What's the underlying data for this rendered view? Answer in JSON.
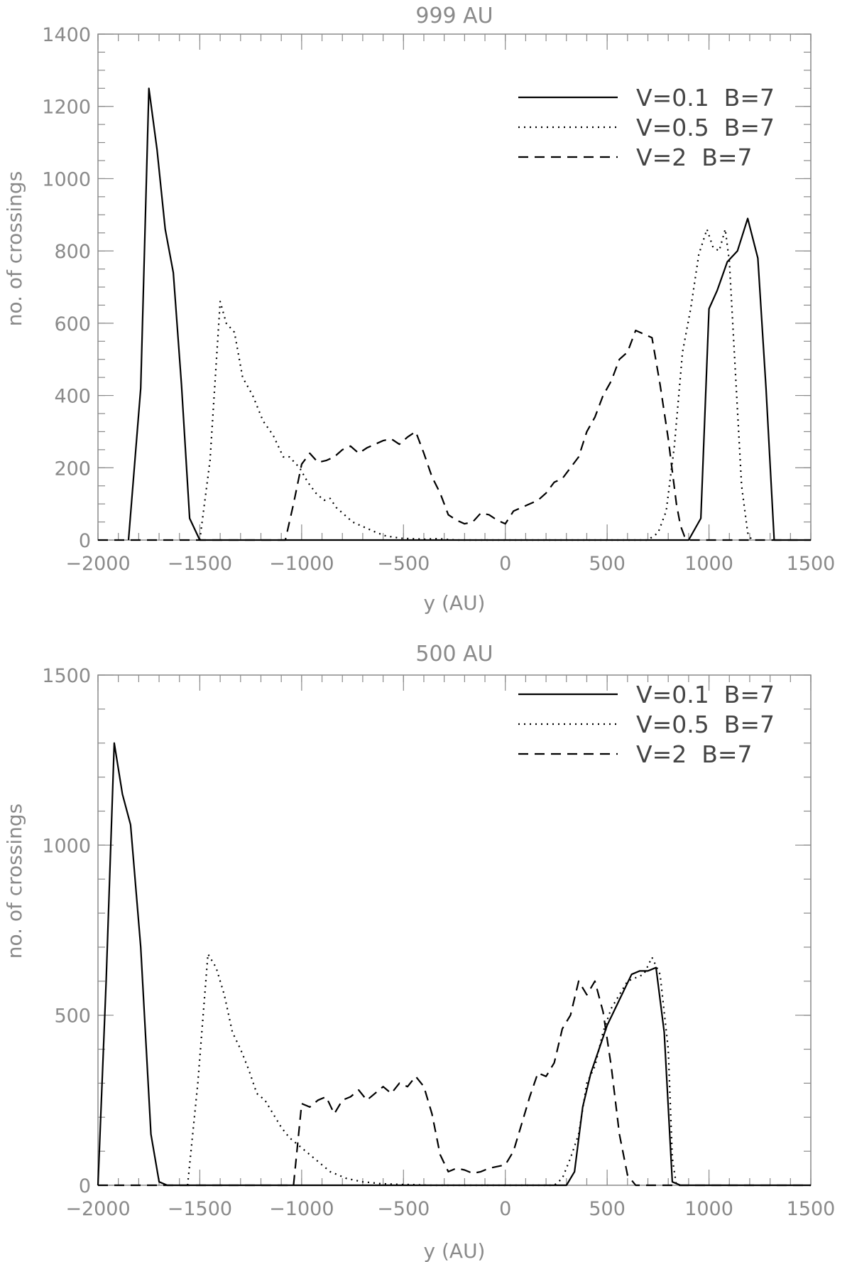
{
  "chart_data": [
    {
      "type": "line",
      "title": "999 AU",
      "xlabel": "y (AU)",
      "ylabel": "no. of crossings",
      "xlim": [
        -2000,
        1500
      ],
      "ylim": [
        0,
        1400
      ],
      "xticks": [
        -2000,
        -1500,
        -1000,
        -500,
        0,
        500,
        1000,
        1500
      ],
      "xtick_labels": [
        "−2000",
        "−1500",
        "−1000",
        "−500",
        "0",
        "500",
        "1000",
        "1500"
      ],
      "yticks": [
        0,
        200,
        400,
        600,
        800,
        1000,
        1200,
        1400
      ],
      "ytick_labels": [
        "0",
        "200",
        "400",
        "600",
        "800",
        "1000",
        "1200",
        "1400"
      ],
      "y_minor_step": 50,
      "x_minor_step": 100,
      "legend_position": "top-right",
      "series": [
        {
          "name": "V=0.1  B=7",
          "style": "solid",
          "x": [
            -1850,
            -1790,
            -1750,
            -1710,
            -1670,
            -1630,
            -1590,
            -1550,
            -1500,
            -1000,
            0,
            900,
            960,
            1000,
            1040,
            1090,
            1140,
            1190,
            1240,
            1280,
            1320,
            1500
          ],
          "y": [
            0,
            420,
            1250,
            1080,
            860,
            740,
            430,
            60,
            0,
            0,
            0,
            0,
            60,
            640,
            690,
            770,
            800,
            890,
            780,
            420,
            0,
            0
          ]
        },
        {
          "name": "V=0.5  B=7",
          "style": "dotted",
          "x": [
            -1500,
            -1450,
            -1400,
            -1370,
            -1330,
            -1290,
            -1240,
            -1190,
            -1140,
            -1090,
            -1060,
            -1010,
            -970,
            -930,
            -890,
            -860,
            -830,
            -790,
            -750,
            -710,
            -670,
            -630,
            -590,
            -550,
            -510,
            -470,
            -430,
            -390,
            -350,
            -310,
            -270,
            -230,
            0,
            700,
            750,
            790,
            830,
            870,
            910,
            950,
            990,
            1020,
            1050,
            1080,
            1100,
            1130,
            1160,
            1190,
            1210
          ],
          "y": [
            0,
            220,
            660,
            600,
            575,
            450,
            400,
            330,
            290,
            230,
            230,
            200,
            160,
            130,
            110,
            115,
            90,
            70,
            50,
            40,
            30,
            20,
            12,
            8,
            5,
            4,
            3,
            2,
            4,
            3,
            1,
            0,
            0,
            0,
            20,
            80,
            260,
            520,
            640,
            790,
            860,
            810,
            800,
            860,
            770,
            460,
            150,
            20,
            0
          ]
        },
        {
          "name": "V=2  B=7",
          "style": "dashed",
          "x": [
            -2000,
            -1080,
            -1040,
            -1000,
            -960,
            -920,
            -880,
            -840,
            -800,
            -760,
            -720,
            -680,
            -640,
            -600,
            -560,
            -520,
            -480,
            -440,
            -400,
            -360,
            -320,
            -280,
            -240,
            -200,
            -160,
            -120,
            -80,
            -40,
            0,
            40,
            80,
            120,
            160,
            200,
            240,
            280,
            320,
            360,
            400,
            440,
            480,
            520,
            560,
            600,
            640,
            680,
            720,
            760,
            800,
            840,
            860,
            880,
            900,
            920,
            940,
            960,
            1000,
            1500
          ],
          "y": [
            0,
            0,
            100,
            210,
            240,
            215,
            220,
            230,
            250,
            260,
            240,
            255,
            265,
            275,
            280,
            265,
            285,
            300,
            240,
            175,
            130,
            70,
            55,
            45,
            50,
            75,
            70,
            55,
            45,
            80,
            90,
            100,
            110,
            130,
            160,
            170,
            200,
            230,
            300,
            340,
            400,
            440,
            500,
            520,
            580,
            570,
            560,
            430,
            280,
            100,
            40,
            10,
            0,
            0,
            0,
            0,
            0,
            0
          ]
        }
      ]
    },
    {
      "type": "line",
      "title": "500 AU",
      "xlabel": "y (AU)",
      "ylabel": "no. of crossings",
      "xlim": [
        -2000,
        1500
      ],
      "ylim": [
        0,
        1500
      ],
      "xticks": [
        -2000,
        -1500,
        -1000,
        -500,
        0,
        500,
        1000,
        1500
      ],
      "xtick_labels": [
        "−2000",
        "−1500",
        "−1000",
        "−500",
        "0",
        "500",
        "1000",
        "1500"
      ],
      "yticks": [
        0,
        500,
        1000,
        1500
      ],
      "ytick_labels": [
        "0",
        "500",
        "1000",
        "1500"
      ],
      "y_minor_step": 100,
      "x_minor_step": 100,
      "legend_position": "top-right",
      "series": [
        {
          "name": "V=0.1  B=7",
          "style": "solid",
          "x": [
            -2000,
            -1960,
            -1920,
            -1880,
            -1840,
            -1790,
            -1740,
            -1700,
            -1660,
            -1620,
            0,
            300,
            340,
            380,
            420,
            460,
            500,
            540,
            580,
            620,
            660,
            700,
            740,
            780,
            820,
            860,
            900,
            1500
          ],
          "y": [
            0,
            600,
            1300,
            1150,
            1060,
            700,
            150,
            10,
            0,
            0,
            0,
            0,
            40,
            230,
            330,
            400,
            470,
            520,
            570,
            620,
            630,
            630,
            640,
            450,
            10,
            0,
            0,
            0
          ]
        },
        {
          "name": "V=0.5  B=7",
          "style": "dotted",
          "x": [
            -1560,
            -1510,
            -1460,
            -1420,
            -1380,
            -1340,
            -1300,
            -1260,
            -1220,
            -1180,
            -1140,
            -1100,
            -1060,
            -1020,
            -980,
            -940,
            -900,
            -860,
            -820,
            -780,
            -740,
            -700,
            -660,
            -620,
            -580,
            -540,
            -500,
            -460,
            -420,
            -380,
            0,
            240,
            280,
            320,
            360,
            400,
            440,
            480,
            520,
            560,
            600,
            640,
            680,
            720,
            760,
            800,
            820,
            840
          ],
          "y": [
            0,
            300,
            680,
            640,
            560,
            450,
            400,
            340,
            270,
            250,
            210,
            170,
            140,
            120,
            100,
            80,
            60,
            40,
            30,
            20,
            15,
            10,
            8,
            5,
            4,
            3,
            2,
            2,
            1,
            0,
            0,
            0,
            20,
            80,
            150,
            300,
            350,
            450,
            520,
            560,
            600,
            610,
            620,
            670,
            620,
            400,
            80,
            0
          ]
        },
        {
          "name": "V=2  B=7",
          "style": "dashed",
          "x": [
            -2000,
            -1040,
            -1000,
            -960,
            -920,
            -880,
            -840,
            -800,
            -760,
            -720,
            -680,
            -640,
            -600,
            -560,
            -520,
            -480,
            -440,
            -400,
            -360,
            -320,
            -280,
            -240,
            -200,
            -160,
            -120,
            -80,
            -40,
            0,
            40,
            80,
            120,
            160,
            200,
            240,
            280,
            320,
            360,
            400,
            440,
            480,
            520,
            560,
            600,
            640,
            680,
            700,
            720,
            1500
          ],
          "y": [
            0,
            0,
            240,
            230,
            250,
            260,
            210,
            250,
            260,
            280,
            250,
            270,
            290,
            270,
            300,
            290,
            320,
            290,
            210,
            90,
            40,
            50,
            45,
            35,
            40,
            50,
            55,
            60,
            100,
            180,
            260,
            330,
            320,
            360,
            460,
            500,
            600,
            560,
            600,
            510,
            350,
            150,
            30,
            0,
            0,
            0,
            0,
            0
          ]
        }
      ]
    }
  ]
}
